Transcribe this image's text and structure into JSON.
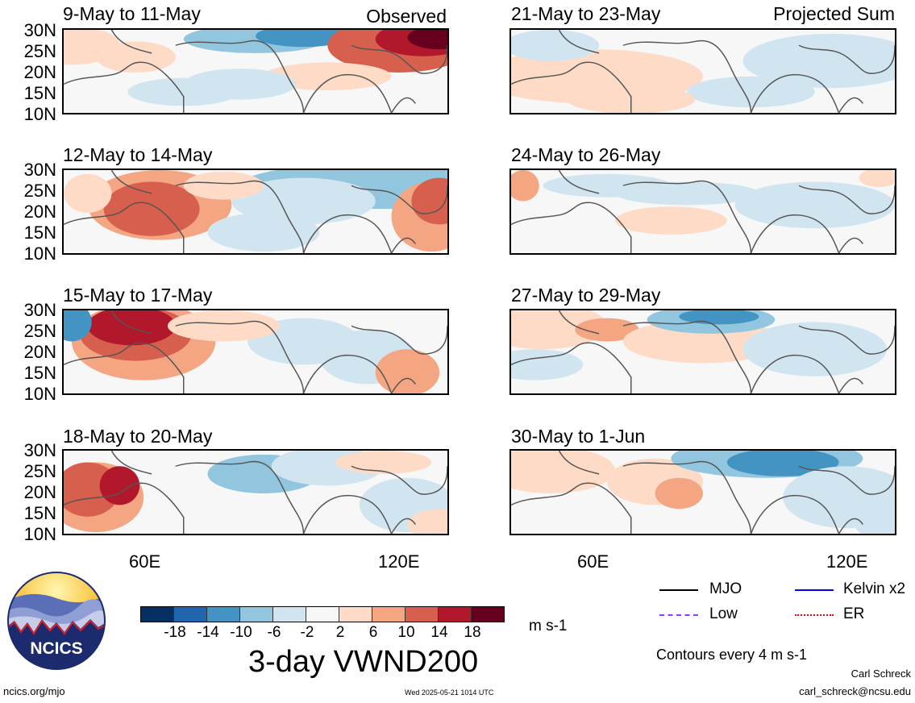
{
  "header": {
    "observed_label": "Observed",
    "projected_label": "Projected Sum"
  },
  "panels": [
    {
      "title": "9-May to 11-May",
      "column": "observed"
    },
    {
      "title": "12-May to 14-May",
      "column": "observed"
    },
    {
      "title": "15-May to 17-May",
      "column": "observed"
    },
    {
      "title": "18-May to 20-May",
      "column": "observed"
    },
    {
      "title": "21-May to 23-May",
      "column": "projected"
    },
    {
      "title": "24-May to 26-May",
      "column": "projected"
    },
    {
      "title": "27-May to 29-May",
      "column": "projected"
    },
    {
      "title": "30-May to 1-Jun",
      "column": "projected"
    }
  ],
  "lat_labels": [
    "30N",
    "25N",
    "20N",
    "15N",
    "10N"
  ],
  "lon_labels": [
    "60E",
    "120E"
  ],
  "colorbar": {
    "colors": [
      "#053061",
      "#2166ac",
      "#4393c3",
      "#92c5de",
      "#d1e5f0",
      "#f7f7f7",
      "#fddbc7",
      "#f4a582",
      "#d6604d",
      "#b2182b",
      "#67001f"
    ],
    "labels": [
      "-18",
      "-14",
      "-10",
      "-6",
      "-2",
      "2",
      "6",
      "10",
      "14",
      "18"
    ],
    "units": "m s-1"
  },
  "title": "3-day VWND200",
  "legend": {
    "items": [
      {
        "label": "MJO",
        "color": "#000000"
      },
      {
        "label": "Kelvin x2",
        "color": "#0000ff"
      },
      {
        "label": "Low",
        "color": "#9933ff"
      },
      {
        "label": "ER",
        "color": "#ff0000"
      }
    ],
    "contours_note": "Contours every 4 m s-1"
  },
  "logo": {
    "text": "NCICS"
  },
  "footer": {
    "url": "ncics.org/mjo",
    "timestamp": "Wed 2025-05-21 1014 UTC",
    "author": "Carl Schreck",
    "email": "carl_schreck@ncsu.edu"
  }
}
